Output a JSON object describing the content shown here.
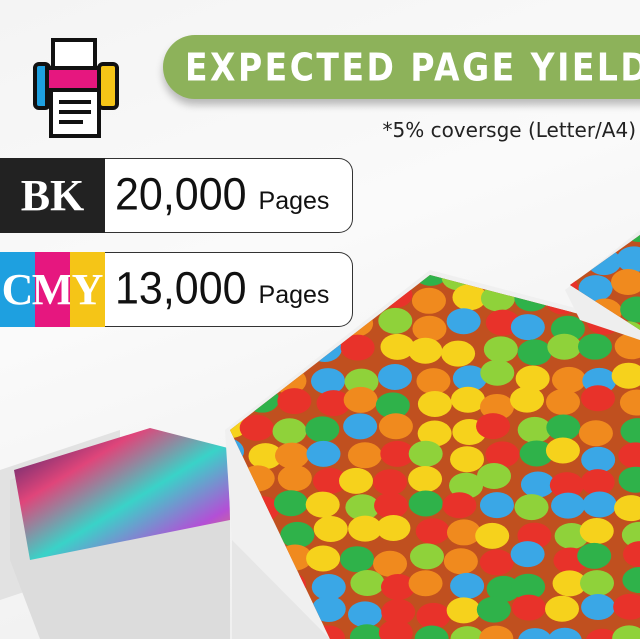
{
  "header": {
    "title": "EXPECTED PAGE YIELD",
    "note": "*5% coversge (Letter/A4)",
    "icon": "printer-icon"
  },
  "yields": [
    {
      "code": "BK",
      "letters": [
        {
          "t": "BK",
          "color": "#222222"
        }
      ],
      "value": "20,000",
      "unit": "Pages"
    },
    {
      "code": "CMY",
      "letters": [
        {
          "t": "C",
          "color": "#1ea0e0"
        },
        {
          "t": "M",
          "color": "#e6177f"
        },
        {
          "t": "Y",
          "color": "#f5c517"
        }
      ],
      "value": "13,000",
      "unit": "Pages"
    }
  ],
  "colors": {
    "accent": "#8db25a",
    "cyan": "#1ea0e0",
    "magenta": "#e6177f",
    "yellow": "#f5c517",
    "black": "#222222"
  }
}
